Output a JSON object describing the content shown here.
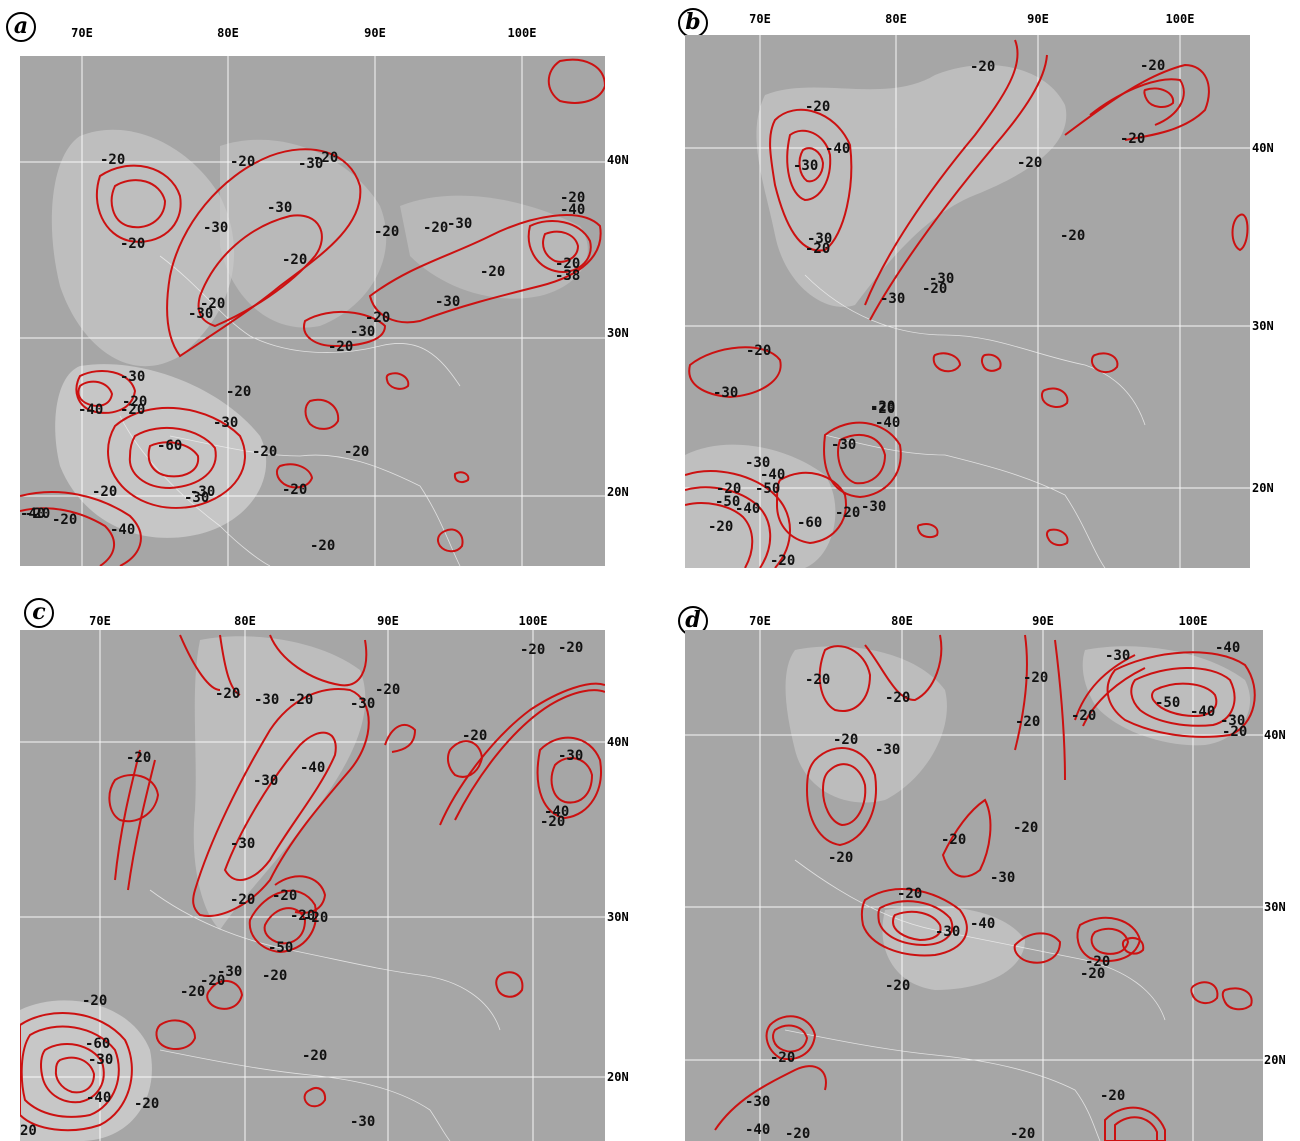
{
  "panels": [
    {
      "letter": "a",
      "lon_labels": [
        "70E",
        "80E",
        "90E",
        "100E"
      ],
      "lat_labels": [
        "40N",
        "30N",
        "20N"
      ],
      "contour_labels": [
        "-20",
        "-20",
        "-30",
        "-20",
        "-20",
        "-30",
        "-30",
        "-20",
        "-20",
        "-30",
        "-20",
        "-20",
        "-30",
        "-20",
        "-20",
        "-30",
        "-20",
        "-20",
        "-40",
        "-20",
        "-38",
        "-30",
        "-40",
        "-20",
        "-30",
        "-20",
        "-30",
        "-60",
        "-20",
        "-20",
        "-20",
        "-40",
        "-30",
        "-20",
        "-40",
        "-20",
        "-20",
        "-30",
        "-20",
        "-20"
      ]
    },
    {
      "letter": "b",
      "lon_labels": [
        "70E",
        "80E",
        "90E",
        "100E"
      ],
      "lat_labels": [
        "40N",
        "30N",
        "20N"
      ],
      "contour_labels": [
        "-20",
        "-20",
        "-20",
        "-20",
        "-40",
        "-30",
        "-20",
        "-20",
        "-30",
        "-20",
        "-30",
        "-30",
        "-20",
        "-20",
        "-20",
        "-30",
        "-20",
        "-40",
        "-30",
        "-30",
        "-40",
        "-20",
        "-50",
        "-50",
        "-40",
        "-20",
        "-60",
        "-20",
        "-30",
        "-20"
      ]
    },
    {
      "letter": "c",
      "lon_labels": [
        "70E",
        "80E",
        "90E",
        "100E"
      ],
      "lat_labels": [
        "40N",
        "30N",
        "20N"
      ],
      "contour_labels": [
        "-20",
        "-20",
        "-20",
        "-30",
        "-20",
        "-20",
        "-30",
        "-20",
        "-40",
        "-30",
        "-20",
        "-40",
        "-20",
        "-30",
        "-20",
        "-30",
        "-20",
        "-20",
        "-20",
        "-50",
        "-20",
        "-20",
        "-30",
        "-20",
        "-20",
        "-60",
        "-30",
        "-40",
        "-20",
        "-20",
        "20",
        "-30"
      ]
    },
    {
      "letter": "d",
      "lon_labels": [
        "70E",
        "80E",
        "90E",
        "100E"
      ],
      "lat_labels": [
        "40N",
        "30N",
        "20N"
      ],
      "contour_labels": [
        "-20",
        "-20",
        "-20",
        "-30",
        "-40",
        "-20",
        "-20",
        "-50",
        "-40",
        "-30",
        "-20",
        "-20",
        "-30",
        "-20",
        "-20",
        "-20",
        "-30",
        "-20",
        "-30",
        "-40",
        "-20",
        "-20",
        "-20",
        "-20",
        "-30",
        "-40",
        "-20",
        "-20",
        "-20"
      ]
    }
  ],
  "colors": {
    "contour": "#cc1111",
    "grid": "#ffffff",
    "background": "#a6a6a6"
  }
}
